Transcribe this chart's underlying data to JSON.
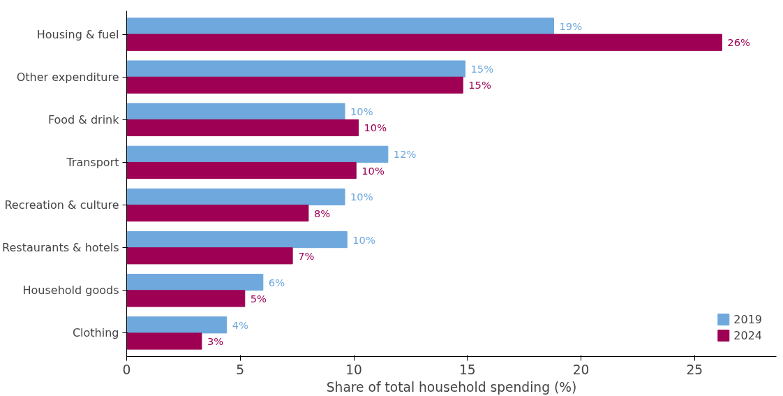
{
  "chart_data": {
    "type": "bar",
    "orientation": "horizontal",
    "xlabel": "Share of total household spending (%)",
    "categories": [
      "Housing & fuel",
      "Other expenditure",
      "Food & drink",
      "Transport",
      "Recreation & culture",
      "Restaurants & hotels",
      "Household goods",
      "Clothing"
    ],
    "series": [
      {
        "name": "2019",
        "color": "#6fa8dc",
        "values": [
          18.8,
          14.9,
          9.6,
          11.5,
          9.6,
          9.7,
          6.0,
          4.4
        ],
        "value_labels": [
          "19%",
          "15%",
          "10%",
          "12%",
          "10%",
          "10%",
          "6%",
          "4%"
        ]
      },
      {
        "name": "2024",
        "color": "#9e0054",
        "values": [
          26.2,
          14.8,
          10.2,
          10.1,
          8.0,
          7.3,
          5.2,
          3.3
        ],
        "value_labels": [
          "26%",
          "15%",
          "10%",
          "10%",
          "8%",
          "7%",
          "5%",
          "3%"
        ]
      }
    ],
    "xlim": [
      0,
      28.6
    ],
    "xticks": [
      0,
      5,
      10,
      15,
      20,
      25
    ],
    "grid": false,
    "legend": "bottom right"
  }
}
